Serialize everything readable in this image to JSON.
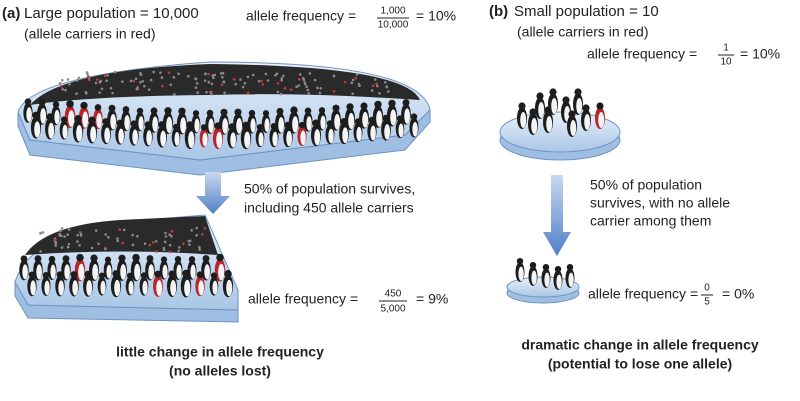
{
  "panel_a": {
    "label": "(a)",
    "title": "Large population = 10,000",
    "subtitle": "(allele carriers in red)",
    "top_frequency": {
      "text": "allele frequency =",
      "numerator": "1,000",
      "denominator": "10,000",
      "result": "= 10%"
    },
    "arrow_text": [
      "50% of population survives,",
      "including 450 allele carriers"
    ],
    "bottom_frequency": {
      "text": "allele frequency =",
      "numerator": "450",
      "denominator": "5,000",
      "result": "= 9%"
    },
    "conclusion": [
      "little change in allele frequency",
      "(no alleles lost)"
    ]
  },
  "panel_b": {
    "label": "(b)",
    "title": "Small population = 10",
    "subtitle": "(allele carriers in red)",
    "top_frequency": {
      "text": "allele frequency =",
      "numerator": "1",
      "denominator": "10",
      "result": "= 10%"
    },
    "arrow_text": [
      "50% of population",
      "survives, with no allele",
      "carrier among them"
    ],
    "bottom_frequency": {
      "text": "allele frequency =",
      "numerator": "0",
      "denominator": "5",
      "result": "= 0%"
    },
    "conclusion": [
      "dramatic change in allele frequency",
      "(potential to lose one allele)"
    ]
  }
}
